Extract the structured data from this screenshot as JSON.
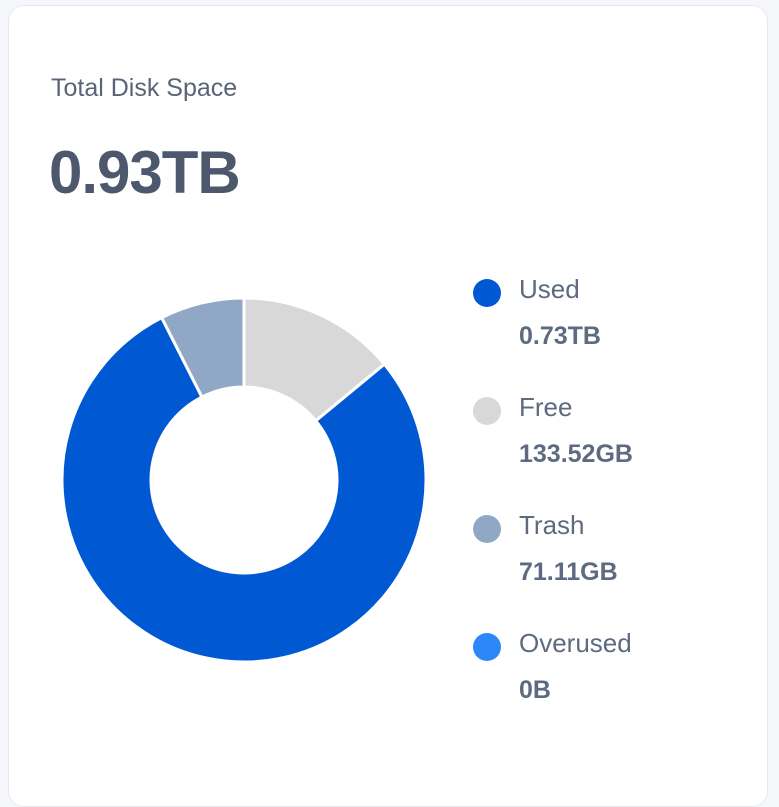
{
  "card": {
    "title": "Total Disk Space",
    "total": "0.93TB"
  },
  "chart_data": {
    "type": "pie",
    "subtype": "donut",
    "unit": "GB",
    "categories": [
      "Used",
      "Free",
      "Trash",
      "Overused"
    ],
    "values": [
      747.5,
      133.52,
      71.11,
      0
    ],
    "value_labels": [
      "0.73TB",
      "133.52GB",
      "71.11GB",
      "0B"
    ],
    "colors": [
      "#0059d3",
      "#d8d8d8",
      "#90a8c6",
      "#2d87f7"
    ],
    "draw_order": [
      "Free",
      "Used",
      "Overused",
      "Trash"
    ],
    "legend_position": "right"
  }
}
